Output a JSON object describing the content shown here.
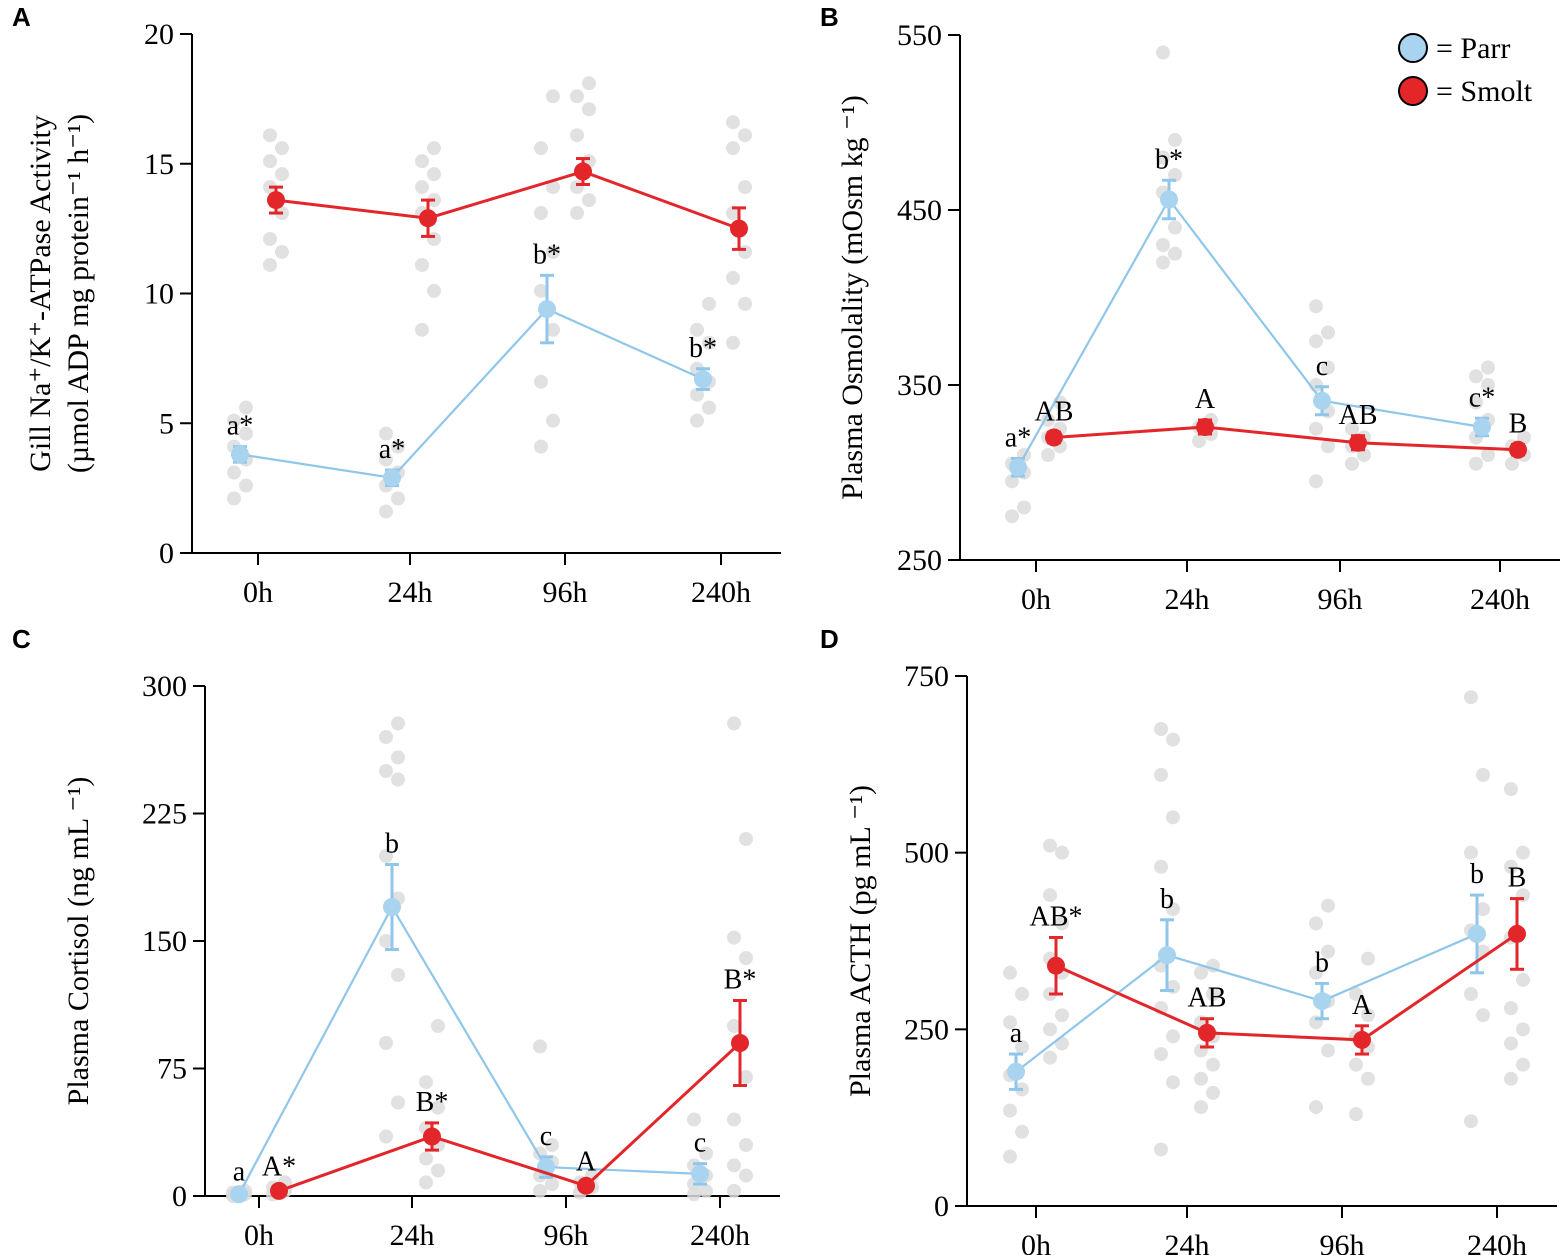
{
  "legend": {
    "items": [
      {
        "label": "= Parr",
        "color": "#a9d4ef"
      },
      {
        "label": "= Smolt",
        "color": "#e52629"
      }
    ]
  },
  "colors": {
    "parr": "#a9d4ef",
    "parr_line": "#8fc6ea",
    "smolt": "#e2262a",
    "raw": "#dcdcdc"
  },
  "chart_data": [
    {
      "panel": "A",
      "type": "line",
      "ylabel_line1": "Gill Na⁺/K⁺-ATPase Activity",
      "ylabel_line2": "(µmol ADP mg protein⁻¹ h⁻¹)",
      "categories": [
        "0h",
        "24h",
        "96h",
        "240h"
      ],
      "ylim": [
        0,
        20
      ],
      "yticks": [
        0,
        5,
        10,
        15,
        20
      ],
      "series": [
        {
          "name": "Parr",
          "values": [
            3.8,
            2.9,
            9.4,
            6.7
          ],
          "errors": [
            0.3,
            0.3,
            1.3,
            0.4
          ],
          "labels": [
            "a*",
            "a*",
            "b*",
            "b*"
          ],
          "raw": [
            [
              2.1,
              2.6,
              3.1,
              3.6,
              4.1,
              4.6,
              5.1,
              5.6
            ],
            [
              1.6,
              2.1,
              2.6,
              3.1,
              3.6,
              4.1,
              4.6
            ],
            [
              4.1,
              5.1,
              6.6,
              8.6,
              10.1,
              11.6,
              13.1,
              14.1,
              15.6,
              17.6
            ],
            [
              5.1,
              5.6,
              6.1,
              6.6,
              7.1,
              8.1,
              8.6,
              9.6
            ]
          ]
        },
        {
          "name": "Smolt",
          "values": [
            13.6,
            12.9,
            14.7,
            12.5
          ],
          "errors": [
            0.5,
            0.7,
            0.5,
            0.8
          ],
          "labels": [
            "",
            "",
            "",
            ""
          ],
          "raw": [
            [
              11.1,
              11.6,
              12.1,
              13.1,
              14.1,
              14.6,
              15.1,
              15.6,
              16.1
            ],
            [
              8.6,
              10.1,
              11.1,
              12.1,
              13.1,
              13.6,
              14.1,
              14.6,
              15.1,
              15.6
            ],
            [
              13.1,
              13.6,
              14.1,
              15.1,
              16.1,
              17.1,
              17.6,
              18.1
            ],
            [
              8.1,
              9.6,
              10.6,
              11.6,
              13.1,
              14.1,
              15.6,
              16.1,
              16.6
            ]
          ]
        }
      ]
    },
    {
      "panel": "B",
      "type": "line",
      "ylabel_line1": "Plasma Osmolality (mOsm kg ⁻¹)",
      "ylabel_line2": "",
      "categories": [
        "0h",
        "24h",
        "96h",
        "240h"
      ],
      "ylim": [
        250,
        550
      ],
      "yticks": [
        250,
        350,
        450,
        550
      ],
      "series": [
        {
          "name": "Parr",
          "values": [
            303,
            456,
            341,
            326
          ],
          "errors": [
            5,
            11,
            8,
            5
          ],
          "labels": [
            "a*",
            "b*",
            "c",
            "c*"
          ],
          "raw": [
            [
              275,
              280,
              295,
              300,
              305,
              310
            ],
            [
              420,
              425,
              430,
              440,
              460,
              470,
              480,
              490,
              540
            ],
            [
              295,
              315,
              325,
              335,
              350,
              360,
              375,
              380,
              395
            ],
            [
              305,
              310,
              320,
              330,
              340,
              350,
              355,
              360
            ]
          ]
        },
        {
          "name": "Smolt",
          "values": [
            320,
            326,
            317,
            313
          ],
          "errors": [
            3,
            4,
            4,
            3
          ],
          "labels": [
            "AB",
            "A",
            "AB",
            "B"
          ],
          "raw": [
            [
              310,
              315,
              320,
              325,
              330,
              340
            ],
            [
              318,
              322,
              326,
              330
            ],
            [
              305,
              310,
              315,
              320,
              325
            ],
            [
              305,
              310,
              315,
              320
            ]
          ]
        }
      ]
    },
    {
      "panel": "C",
      "type": "line",
      "ylabel_line1": "Plasma Cortisol (ng mL ⁻¹)",
      "ylabel_line2": "",
      "categories": [
        "0h",
        "24h",
        "96h",
        "240h"
      ],
      "ylim": [
        0,
        300
      ],
      "yticks": [
        0,
        75,
        150,
        225,
        300
      ],
      "series": [
        {
          "name": "Parr",
          "values": [
            1,
            170,
            17,
            13
          ],
          "errors": [
            1,
            25,
            6,
            6
          ],
          "labels": [
            "a",
            "b",
            "c",
            "c"
          ],
          "raw": [
            [
              0,
              1,
              2,
              3
            ],
            [
              35,
              55,
              90,
              130,
              150,
              175,
              200,
              245,
              250,
              258,
              270,
              278
            ],
            [
              3,
              7,
              12,
              20,
              25,
              30,
              88
            ],
            [
              1,
              3,
              7,
              12,
              18,
              25,
              45
            ]
          ]
        },
        {
          "name": "Smolt",
          "values": [
            3,
            35,
            6,
            90
          ],
          "errors": [
            2,
            8,
            2,
            25
          ],
          "labels": [
            "A*",
            "B*",
            "A",
            "B*"
          ],
          "raw": [
            [
              1,
              3,
              5,
              8
            ],
            [
              8,
              15,
              22,
              30,
              40,
              52,
              67,
              100
            ],
            [
              2,
              5,
              8,
              12
            ],
            [
              3,
              12,
              18,
              30,
              45,
              70,
              100,
              140,
              152,
              210,
              278
            ]
          ]
        }
      ]
    },
    {
      "panel": "D",
      "type": "line",
      "ylabel_line1": "Plasma ACTH (pg mL ⁻¹)",
      "ylabel_line2": "",
      "categories": [
        "0h",
        "24h",
        "96h",
        "240h"
      ],
      "ylim": [
        0,
        750
      ],
      "yticks": [
        0,
        250,
        500,
        750
      ],
      "series": [
        {
          "name": "Parr",
          "values": [
            190,
            355,
            290,
            385
          ],
          "errors": [
            25,
            50,
            25,
            55
          ],
          "labels": [
            "a",
            "b",
            "b",
            "b"
          ],
          "raw": [
            [
              70,
              105,
              135,
              165,
              185,
              225,
              260,
              300,
              330
            ],
            [
              80,
              175,
              215,
              240,
              280,
              310,
              340,
              420,
              480,
              550,
              610,
              660,
              675
            ],
            [
              140,
              220,
              260,
              290,
              330,
              360,
              400,
              425
            ],
            [
              120,
              270,
              300,
              360,
              390,
              420,
              500,
              610,
              720
            ]
          ]
        },
        {
          "name": "Smolt",
          "values": [
            340,
            245,
            235,
            385
          ],
          "errors": [
            40,
            20,
            20,
            50
          ],
          "labels": [
            "AB*",
            "AB",
            "A",
            "B"
          ],
          "raw": [
            [
              210,
              230,
              250,
              270,
              300,
              330,
              350,
              400,
              440,
              500,
              510
            ],
            [
              140,
              160,
              180,
              200,
              220,
              240,
              260,
              300,
              330,
              340
            ],
            [
              130,
              180,
              200,
              225,
              240,
              270,
              300,
              350
            ],
            [
              180,
              200,
              230,
              250,
              280,
              320,
              380,
              440,
              480,
              500,
              590
            ]
          ]
        }
      ]
    }
  ]
}
